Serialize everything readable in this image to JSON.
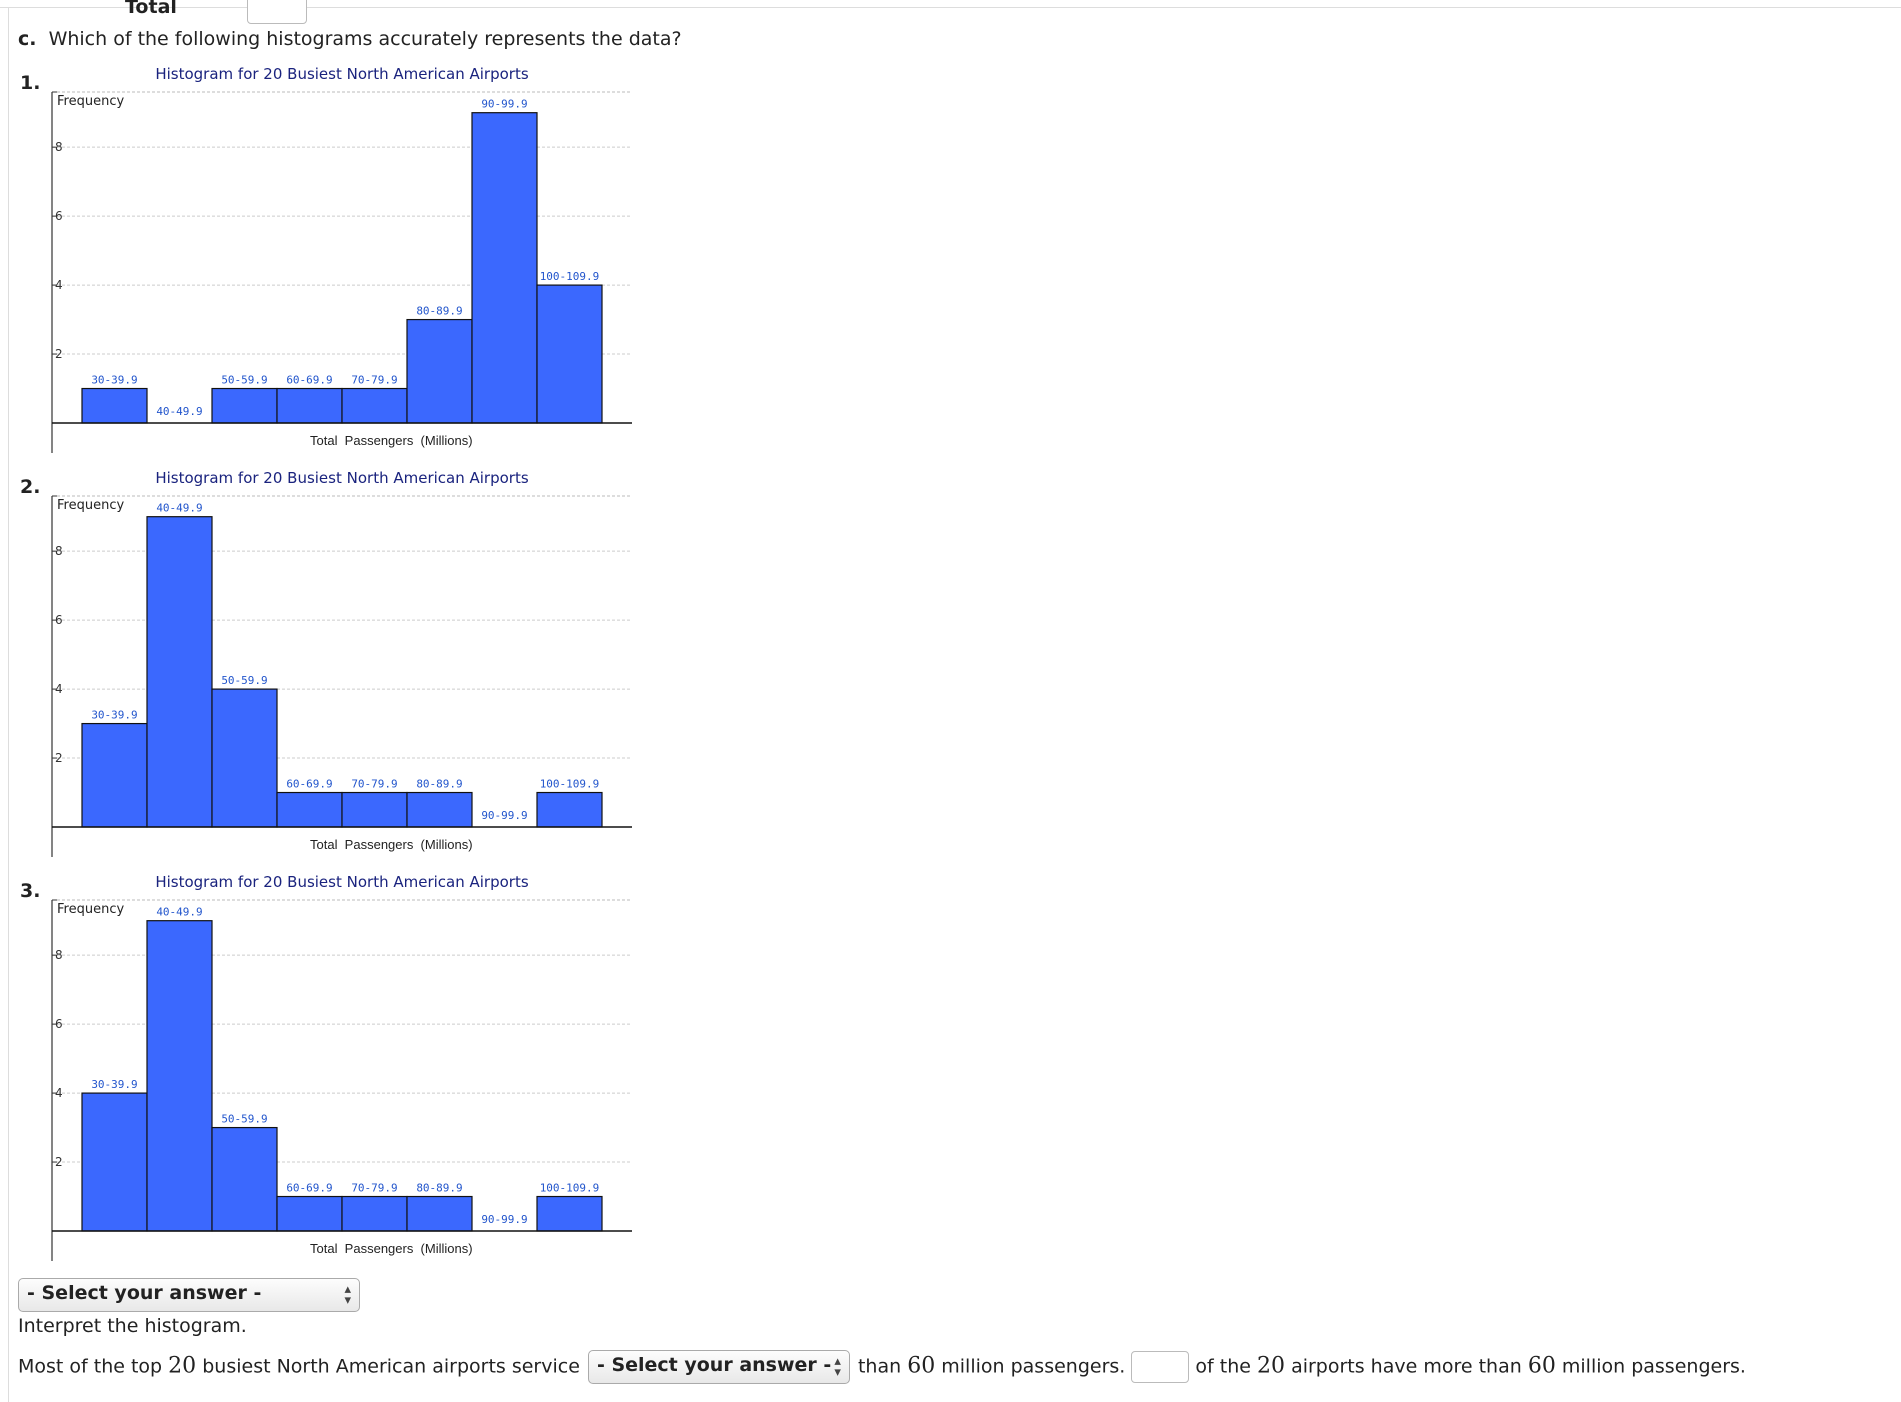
{
  "header": {
    "prev_label": "Total",
    "question": "Which of the following histograms accurately represents the data?",
    "part_letter": "c."
  },
  "option_numbers": [
    "1.",
    "2.",
    "3."
  ],
  "chart_data": [
    {
      "type": "bar",
      "title": "Histogram for 20 Busiest North American Airports",
      "xlabel": "Total  Passengers  (Millions)",
      "ylabel": "Frequency",
      "ylim": [
        0,
        9.6
      ],
      "yticks": [
        "2",
        "4",
        "6",
        "8"
      ],
      "grid": true,
      "categories": [
        "30-39.9",
        "40-49.9",
        "50-59.9",
        "60-69.9",
        "70-79.9",
        "80-89.9",
        "90-99.9",
        "100-109.9"
      ],
      "values": [
        1,
        0,
        1,
        1,
        1,
        3,
        9,
        4
      ],
      "bar_color": "#3b68fe"
    },
    {
      "type": "bar",
      "title": "Histogram for 20 Busiest North American Airports",
      "xlabel": "Total  Passengers  (Millions)",
      "ylabel": "Frequency",
      "ylim": [
        0,
        9.6
      ],
      "yticks": [
        "2",
        "4",
        "6",
        "8"
      ],
      "grid": true,
      "categories": [
        "30-39.9",
        "40-49.9",
        "50-59.9",
        "60-69.9",
        "70-79.9",
        "80-89.9",
        "90-99.9",
        "100-109.9"
      ],
      "values": [
        3,
        9,
        4,
        1,
        1,
        1,
        0,
        1
      ],
      "bar_color": "#3b68fe"
    },
    {
      "type": "bar",
      "title": "Histogram for 20 Busiest North American Airports",
      "xlabel": "Total  Passengers  (Millions)",
      "ylabel": "Frequency",
      "ylim": [
        0,
        9.6
      ],
      "yticks": [
        "2",
        "4",
        "6",
        "8"
      ],
      "grid": true,
      "categories": [
        "30-39.9",
        "40-49.9",
        "50-59.9",
        "60-69.9",
        "70-79.9",
        "80-89.9",
        "90-99.9",
        "100-109.9"
      ],
      "values": [
        4,
        9,
        3,
        1,
        1,
        1,
        0,
        1
      ],
      "bar_color": "#3b68fe"
    }
  ],
  "answer_select": {
    "label": "- Select your answer -"
  },
  "interpret": {
    "heading": "Interpret the histogram.",
    "sentence_start": "Most of the top",
    "num_20a": "20",
    "sentence_mid": "busiest North American airports service",
    "select_label": "- Select your answer -",
    "after_select": "than",
    "num_60a": "60",
    "after_60": "million passengers.",
    "after_input": "of the",
    "num_20b": "20",
    "after_20b": "airports have more than",
    "num_60b": "60",
    "end": "million passengers."
  }
}
